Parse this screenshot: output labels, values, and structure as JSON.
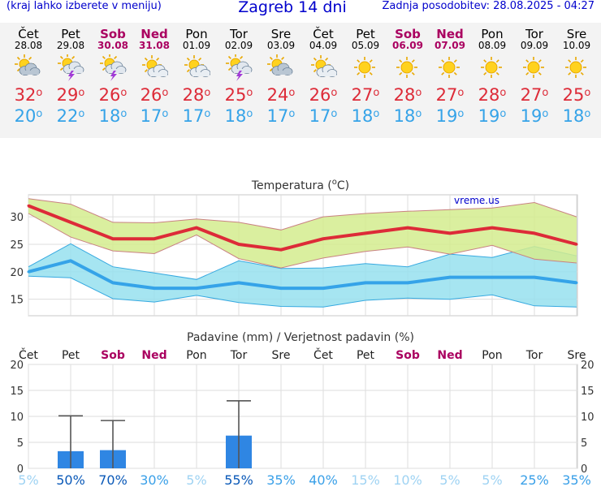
{
  "header": {
    "hint": "(kraj lahko izberete v meniju)",
    "title": "Zagreb 14 dni",
    "updated": "Zadnja posodobitev: 28.08.2025 - 04:27"
  },
  "days": [
    {
      "name": "Čet",
      "date": "28.08",
      "weekend": false,
      "icon": "partly-cloudy-icon",
      "max": "32",
      "min": "20"
    },
    {
      "name": "Pet",
      "date": "29.08",
      "weekend": false,
      "icon": "thunderstorm-icon",
      "max": "29",
      "min": "22"
    },
    {
      "name": "Sob",
      "date": "30.08",
      "weekend": true,
      "icon": "thunderstorm-icon",
      "max": "26",
      "min": "18"
    },
    {
      "name": "Ned",
      "date": "31.08",
      "weekend": true,
      "icon": "sun-cloud-icon",
      "max": "26",
      "min": "17"
    },
    {
      "name": "Pon",
      "date": "01.09",
      "weekend": false,
      "icon": "sun-cloud-icon",
      "max": "28",
      "min": "17"
    },
    {
      "name": "Tor",
      "date": "02.09",
      "weekend": false,
      "icon": "thunderstorm-icon",
      "max": "25",
      "min": "18"
    },
    {
      "name": "Sre",
      "date": "03.09",
      "weekend": false,
      "icon": "partly-cloudy-icon",
      "max": "24",
      "min": "17"
    },
    {
      "name": "Čet",
      "date": "04.09",
      "weekend": false,
      "icon": "sun-cloud-icon",
      "max": "26",
      "min": "17"
    },
    {
      "name": "Pet",
      "date": "05.09",
      "weekend": false,
      "icon": "sun-icon",
      "max": "27",
      "min": "18"
    },
    {
      "name": "Sob",
      "date": "06.09",
      "weekend": true,
      "icon": "sun-icon",
      "max": "28",
      "min": "18"
    },
    {
      "name": "Ned",
      "date": "07.09",
      "weekend": true,
      "icon": "sun-icon",
      "max": "27",
      "min": "19"
    },
    {
      "name": "Pon",
      "date": "08.09",
      "weekend": false,
      "icon": "sun-icon",
      "max": "28",
      "min": "19"
    },
    {
      "name": "Tor",
      "date": "09.09",
      "weekend": false,
      "icon": "sun-icon",
      "max": "27",
      "min": "19"
    },
    {
      "name": "Sre",
      "date": "10.09",
      "weekend": false,
      "icon": "sun-icon",
      "max": "25",
      "min": "18"
    }
  ],
  "colors": {
    "max": "#dd2b38",
    "min": "#35a3e8",
    "weekend": "#aa0060",
    "maxBand": "#d4ec8e",
    "minBand": "#96e0ee",
    "bar": "#2f86e3",
    "header": "#0000cc"
  },
  "chart_data": [
    {
      "type": "line",
      "title": "Temperatura (°C)",
      "watermark": "vreme.us",
      "ylim": [
        12,
        34
      ],
      "yticks": [
        15,
        20,
        25,
        30
      ],
      "grid": true,
      "x_count": 14,
      "series": [
        {
          "name": "max",
          "values": [
            32,
            29,
            26,
            26,
            28,
            25,
            24,
            26,
            27,
            28,
            27,
            28,
            27,
            25
          ]
        },
        {
          "name": "min",
          "values": [
            20,
            22,
            18,
            17,
            17,
            18,
            17,
            17,
            18,
            18,
            19,
            19,
            19,
            18
          ]
        }
      ],
      "bands": [
        {
          "name": "max_band",
          "upper": [
            33.3,
            32.3,
            29.0,
            28.9,
            29.6,
            29.0,
            27.6,
            30.0,
            30.6,
            31.0,
            31.3,
            31.6,
            32.6,
            30.0
          ],
          "lower": [
            30.6,
            26.3,
            23.8,
            23.3,
            26.7,
            22.4,
            20.7,
            22.5,
            23.7,
            24.5,
            23.2,
            24.8,
            22.3,
            21.6
          ]
        },
        {
          "name": "min_band",
          "upper": [
            20.9,
            25.1,
            20.9,
            19.8,
            18.6,
            22.0,
            20.6,
            20.7,
            21.5,
            20.9,
            23.2,
            22.6,
            24.6,
            22.9
          ],
          "lower": [
            19.2,
            18.9,
            15.1,
            14.5,
            15.7,
            14.4,
            13.7,
            13.6,
            14.8,
            15.2,
            15.0,
            15.8,
            13.8,
            13.6
          ]
        }
      ]
    },
    {
      "type": "bar",
      "title": "Padavine (mm) / Verjetnost padavin (%)",
      "ylim": [
        0,
        20
      ],
      "yticks": [
        0,
        5,
        10,
        15,
        20
      ],
      "grid": true,
      "categories": [
        "Čet",
        "Pet",
        "Sob",
        "Ned",
        "Pon",
        "Tor",
        "Sre",
        "Čet",
        "Pet",
        "Sob",
        "Ned",
        "Pon",
        "Tor",
        "Sre"
      ],
      "values": [
        0,
        3.3,
        3.5,
        0,
        0,
        6.3,
        0,
        0,
        0,
        0,
        0,
        0,
        0,
        0
      ],
      "error_max": [
        null,
        10.1,
        9.2,
        null,
        null,
        13.0,
        null,
        null,
        null,
        null,
        null,
        null,
        null,
        null
      ],
      "probability": [
        "5%",
        "50%",
        "70%",
        "30%",
        "5%",
        "55%",
        "35%",
        "40%",
        "15%",
        "10%",
        "5%",
        "5%",
        "25%",
        "35%"
      ]
    }
  ]
}
